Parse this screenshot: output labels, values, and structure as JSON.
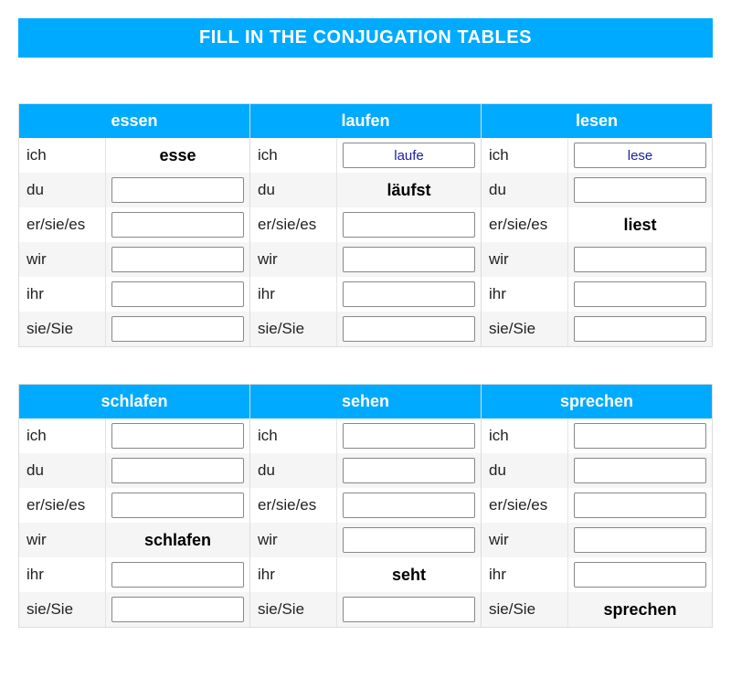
{
  "title": "FILL IN THE CONJUGATION TABLES",
  "colors": {
    "accent": "#00aaff",
    "accent_text": "#ffffff",
    "row_alt": "#f5f5f5",
    "row_base": "#ffffff",
    "border": "#dcdcdc",
    "input_text": "#1a1aaa"
  },
  "pronouns": [
    "ich",
    "du",
    "er/sie/es",
    "wir",
    "ihr",
    "sie/Sie"
  ],
  "groups": [
    {
      "tables": [
        {
          "verb": "essen",
          "cells": [
            {
              "type": "prefilled",
              "value": "esse"
            },
            {
              "type": "input",
              "value": ""
            },
            {
              "type": "input",
              "value": ""
            },
            {
              "type": "input",
              "value": ""
            },
            {
              "type": "input",
              "value": ""
            },
            {
              "type": "input",
              "value": ""
            }
          ]
        },
        {
          "verb": "laufen",
          "cells": [
            {
              "type": "input",
              "value": "laufe"
            },
            {
              "type": "prefilled",
              "value": "läufst"
            },
            {
              "type": "input",
              "value": ""
            },
            {
              "type": "input",
              "value": ""
            },
            {
              "type": "input",
              "value": ""
            },
            {
              "type": "input",
              "value": ""
            }
          ]
        },
        {
          "verb": "lesen",
          "cells": [
            {
              "type": "input",
              "value": "lese"
            },
            {
              "type": "input",
              "value": ""
            },
            {
              "type": "prefilled",
              "value": "liest"
            },
            {
              "type": "input",
              "value": ""
            },
            {
              "type": "input",
              "value": ""
            },
            {
              "type": "input",
              "value": ""
            }
          ]
        }
      ]
    },
    {
      "tables": [
        {
          "verb": "schlafen",
          "cells": [
            {
              "type": "input",
              "value": ""
            },
            {
              "type": "input",
              "value": ""
            },
            {
              "type": "input",
              "value": ""
            },
            {
              "type": "prefilled",
              "value": "schlafen"
            },
            {
              "type": "input",
              "value": ""
            },
            {
              "type": "input",
              "value": ""
            }
          ]
        },
        {
          "verb": "sehen",
          "cells": [
            {
              "type": "input",
              "value": ""
            },
            {
              "type": "input",
              "value": ""
            },
            {
              "type": "input",
              "value": ""
            },
            {
              "type": "input",
              "value": ""
            },
            {
              "type": "prefilled",
              "value": "seht"
            },
            {
              "type": "input",
              "value": ""
            }
          ]
        },
        {
          "verb": "sprechen",
          "cells": [
            {
              "type": "input",
              "value": ""
            },
            {
              "type": "input",
              "value": ""
            },
            {
              "type": "input",
              "value": ""
            },
            {
              "type": "input",
              "value": ""
            },
            {
              "type": "input",
              "value": ""
            },
            {
              "type": "prefilled",
              "value": "sprechen"
            }
          ]
        }
      ]
    }
  ]
}
